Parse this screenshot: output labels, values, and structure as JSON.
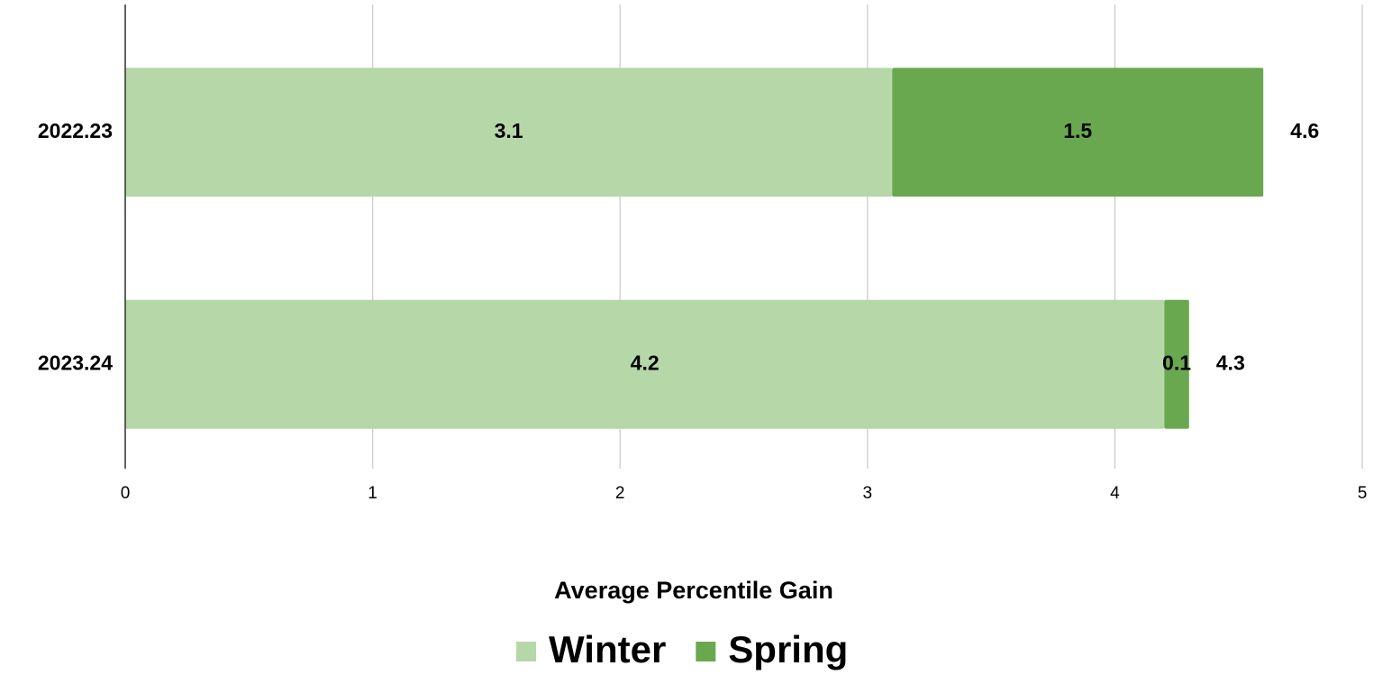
{
  "chart_data": {
    "type": "stacked_bar_horizontal",
    "categories": [
      "2022.23",
      "2023.24"
    ],
    "series": [
      {
        "name": "Winter",
        "color": "#b6d7a8",
        "values": [
          3.1,
          4.2
        ]
      },
      {
        "name": "Spring",
        "color": "#6aa84f",
        "values": [
          1.5,
          0.1
        ]
      }
    ],
    "totals": [
      4.6,
      4.3
    ],
    "xlabel": "Average Percentile Gain",
    "xlim": [
      0,
      5
    ],
    "xticks": [
      0,
      1,
      2,
      3,
      4,
      5
    ],
    "grid": true,
    "legend": "bottom"
  }
}
